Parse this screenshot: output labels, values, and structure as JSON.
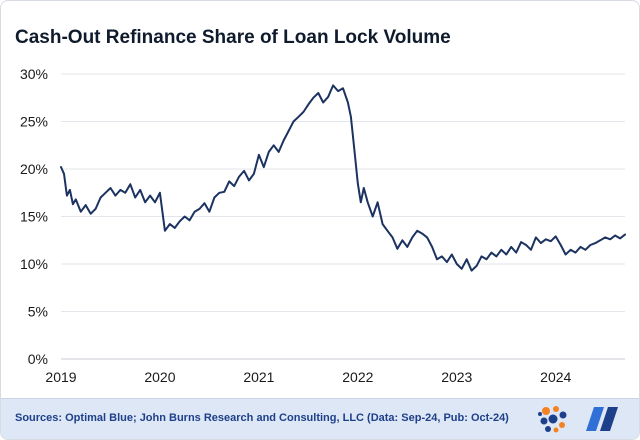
{
  "title": "Cash-Out Refinance Share of Loan Lock Volume",
  "footer": {
    "source": "Sources: Optimal Blue; John Burns Research and Consulting, LLC (Data: Sep-24, Pub: Oct-24)"
  },
  "colors": {
    "line": "#1c3260",
    "grid": "#e3e6ea",
    "footer_bg": "#dde7f5",
    "source_text": "#1e3f8a"
  },
  "chart_data": {
    "type": "line",
    "title": "Cash-Out Refinance Share of Loan Lock Volume",
    "xlabel": "",
    "ylabel": "",
    "x_ticks": [
      "2019",
      "2020",
      "2021",
      "2022",
      "2023",
      "2024"
    ],
    "x_tick_values": [
      2019,
      2020,
      2021,
      2022,
      2023,
      2024
    ],
    "y_ticks": [
      "0%",
      "5%",
      "10%",
      "15%",
      "20%",
      "25%",
      "30%"
    ],
    "y_tick_values": [
      0,
      5,
      10,
      15,
      20,
      25,
      30
    ],
    "ylim": [
      0,
      30
    ],
    "xlim": [
      2019.0,
      2024.7
    ],
    "grid": "horizontal",
    "legend": "none",
    "series": [
      {
        "x": [
          2019.0,
          2019.03,
          2019.06,
          2019.09,
          2019.12,
          2019.15,
          2019.2,
          2019.25,
          2019.3,
          2019.35,
          2019.4,
          2019.45,
          2019.5,
          2019.55,
          2019.6,
          2019.65,
          2019.7,
          2019.75,
          2019.8,
          2019.85,
          2019.9,
          2019.95,
          2020.0,
          2020.05,
          2020.1,
          2020.15,
          2020.2,
          2020.25,
          2020.3,
          2020.35,
          2020.4,
          2020.45,
          2020.5,
          2020.55,
          2020.6,
          2020.65,
          2020.7,
          2020.75,
          2020.8,
          2020.85,
          2020.9,
          2020.95,
          2021.0,
          2021.05,
          2021.1,
          2021.15,
          2021.2,
          2021.25,
          2021.3,
          2021.35,
          2021.4,
          2021.45,
          2021.5,
          2021.55,
          2021.6,
          2021.65,
          2021.7,
          2021.75,
          2021.8,
          2021.85,
          2021.9,
          2021.93,
          2021.96,
          2022.0,
          2022.03,
          2022.06,
          2022.1,
          2022.15,
          2022.2,
          2022.25,
          2022.3,
          2022.35,
          2022.4,
          2022.45,
          2022.5,
          2022.55,
          2022.6,
          2022.65,
          2022.7,
          2022.75,
          2022.8,
          2022.85,
          2022.9,
          2022.95,
          2023.0,
          2023.05,
          2023.1,
          2023.15,
          2023.2,
          2023.25,
          2023.3,
          2023.35,
          2023.4,
          2023.45,
          2023.5,
          2023.55,
          2023.6,
          2023.65,
          2023.7,
          2023.75,
          2023.8,
          2023.85,
          2023.9,
          2023.95,
          2024.0,
          2024.05,
          2024.1,
          2024.15,
          2024.2,
          2024.25,
          2024.3,
          2024.35,
          2024.4,
          2024.45,
          2024.5,
          2024.55,
          2024.6,
          2024.65,
          2024.7
        ],
        "values": [
          20.2,
          19.5,
          17.2,
          17.8,
          16.3,
          16.8,
          15.5,
          16.2,
          15.3,
          15.8,
          17.0,
          17.5,
          18.0,
          17.2,
          17.8,
          17.5,
          18.4,
          17.0,
          17.8,
          16.5,
          17.2,
          16.5,
          17.5,
          13.5,
          14.2,
          13.8,
          14.5,
          15.0,
          14.6,
          15.5,
          15.8,
          16.4,
          15.5,
          17.0,
          17.5,
          17.6,
          18.7,
          18.2,
          19.2,
          19.8,
          18.8,
          19.5,
          21.5,
          20.2,
          21.8,
          22.5,
          21.8,
          23.0,
          24.0,
          25.0,
          25.5,
          26.0,
          26.8,
          27.5,
          28.0,
          27.0,
          27.6,
          28.8,
          28.2,
          28.5,
          27.0,
          25.5,
          22.5,
          18.5,
          16.5,
          18.0,
          16.5,
          15.0,
          16.5,
          14.2,
          13.5,
          12.8,
          11.6,
          12.5,
          11.8,
          12.8,
          13.5,
          13.2,
          12.8,
          11.8,
          10.5,
          10.8,
          10.2,
          11.0,
          10.0,
          9.5,
          10.5,
          9.3,
          9.8,
          10.8,
          10.5,
          11.2,
          10.8,
          11.5,
          11.0,
          11.8,
          11.2,
          12.3,
          12.0,
          11.5,
          12.8,
          12.2,
          12.6,
          12.4,
          12.9,
          12.0,
          11.0,
          11.5,
          11.2,
          11.8,
          11.5,
          12.0,
          12.2,
          12.5,
          12.8,
          12.6,
          13.0,
          12.7,
          13.1
        ]
      }
    ]
  }
}
